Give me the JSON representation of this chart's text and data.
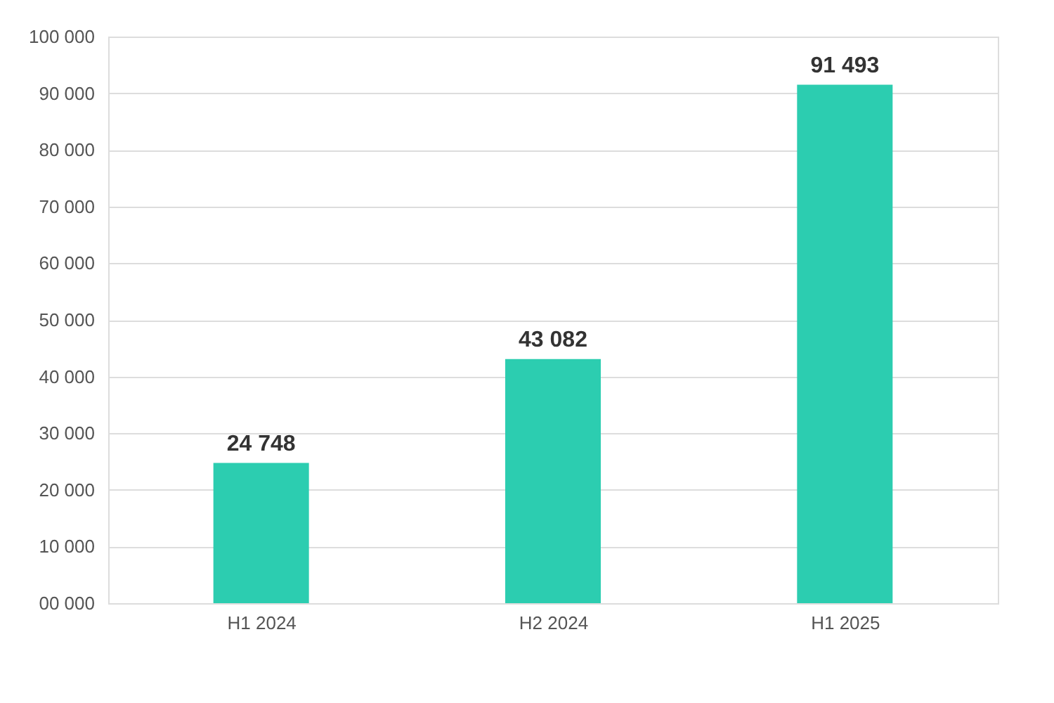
{
  "chart_data": {
    "type": "bar",
    "categories": [
      "H1 2024",
      "H2 2024",
      "H1 2025"
    ],
    "series": [
      {
        "color": "#2ccdb0",
        "values": [
          24748,
          43082,
          91493
        ],
        "value_labels": [
          "24 748",
          "43 082",
          "91 493"
        ]
      }
    ],
    "ylim": [
      0,
      100000
    ],
    "yticks": [
      {
        "value": 0,
        "label": "00 000"
      },
      {
        "value": 10000,
        "label": "10 000"
      },
      {
        "value": 20000,
        "label": "20 000"
      },
      {
        "value": 30000,
        "label": "30 000"
      },
      {
        "value": 40000,
        "label": "40 000"
      },
      {
        "value": 50000,
        "label": "50 000"
      },
      {
        "value": 60000,
        "label": "60 000"
      },
      {
        "value": 70000,
        "label": "70 000"
      },
      {
        "value": 80000,
        "label": "80 000"
      },
      {
        "value": 90000,
        "label": "90 000"
      },
      {
        "value": 100000,
        "label": "100 000"
      }
    ],
    "grid": "y"
  }
}
